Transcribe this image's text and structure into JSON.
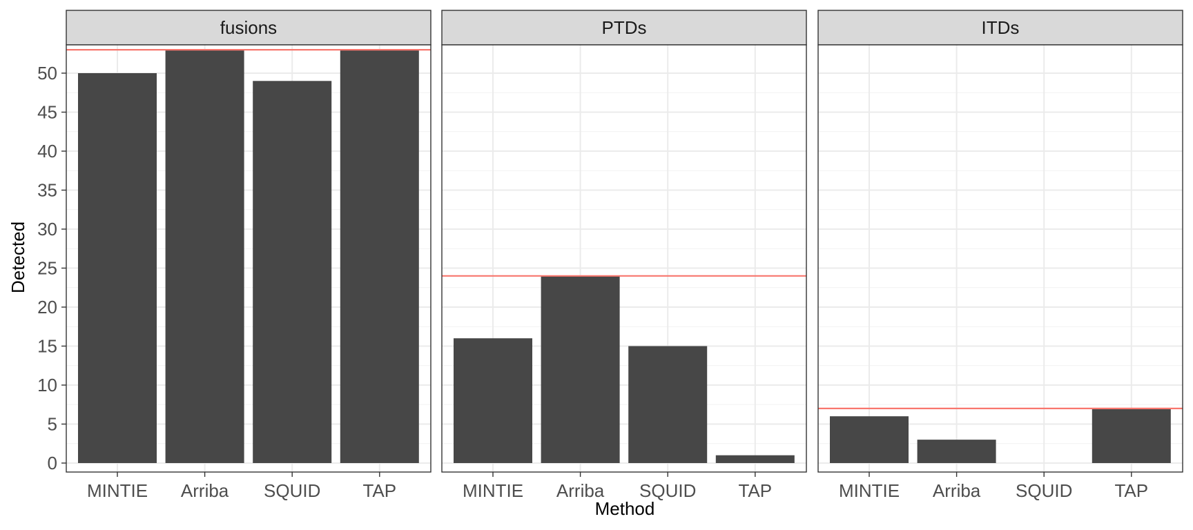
{
  "chart_data": {
    "type": "bar",
    "xlabel": "Method",
    "ylabel": "Detected",
    "categories": [
      "MINTIE",
      "Arriba",
      "SQUID",
      "TAP"
    ],
    "ylim": [
      0,
      53
    ],
    "y_ticks": [
      0,
      5,
      10,
      15,
      20,
      25,
      30,
      35,
      40,
      45,
      50
    ],
    "grid": true,
    "panels": [
      {
        "facet": "fusions",
        "values": [
          50,
          53,
          49,
          53
        ],
        "reference_line": 53
      },
      {
        "facet": "PTDs",
        "values": [
          16,
          24,
          15,
          1
        ],
        "reference_line": 24
      },
      {
        "facet": "ITDs",
        "values": [
          6,
          3,
          0,
          7
        ],
        "reference_line": 7
      }
    ],
    "colors": {
      "bar": "#474747",
      "reference_line": "#f8766d",
      "strip_fill": "#d9d9d9",
      "grid": "#ebebeb"
    }
  }
}
